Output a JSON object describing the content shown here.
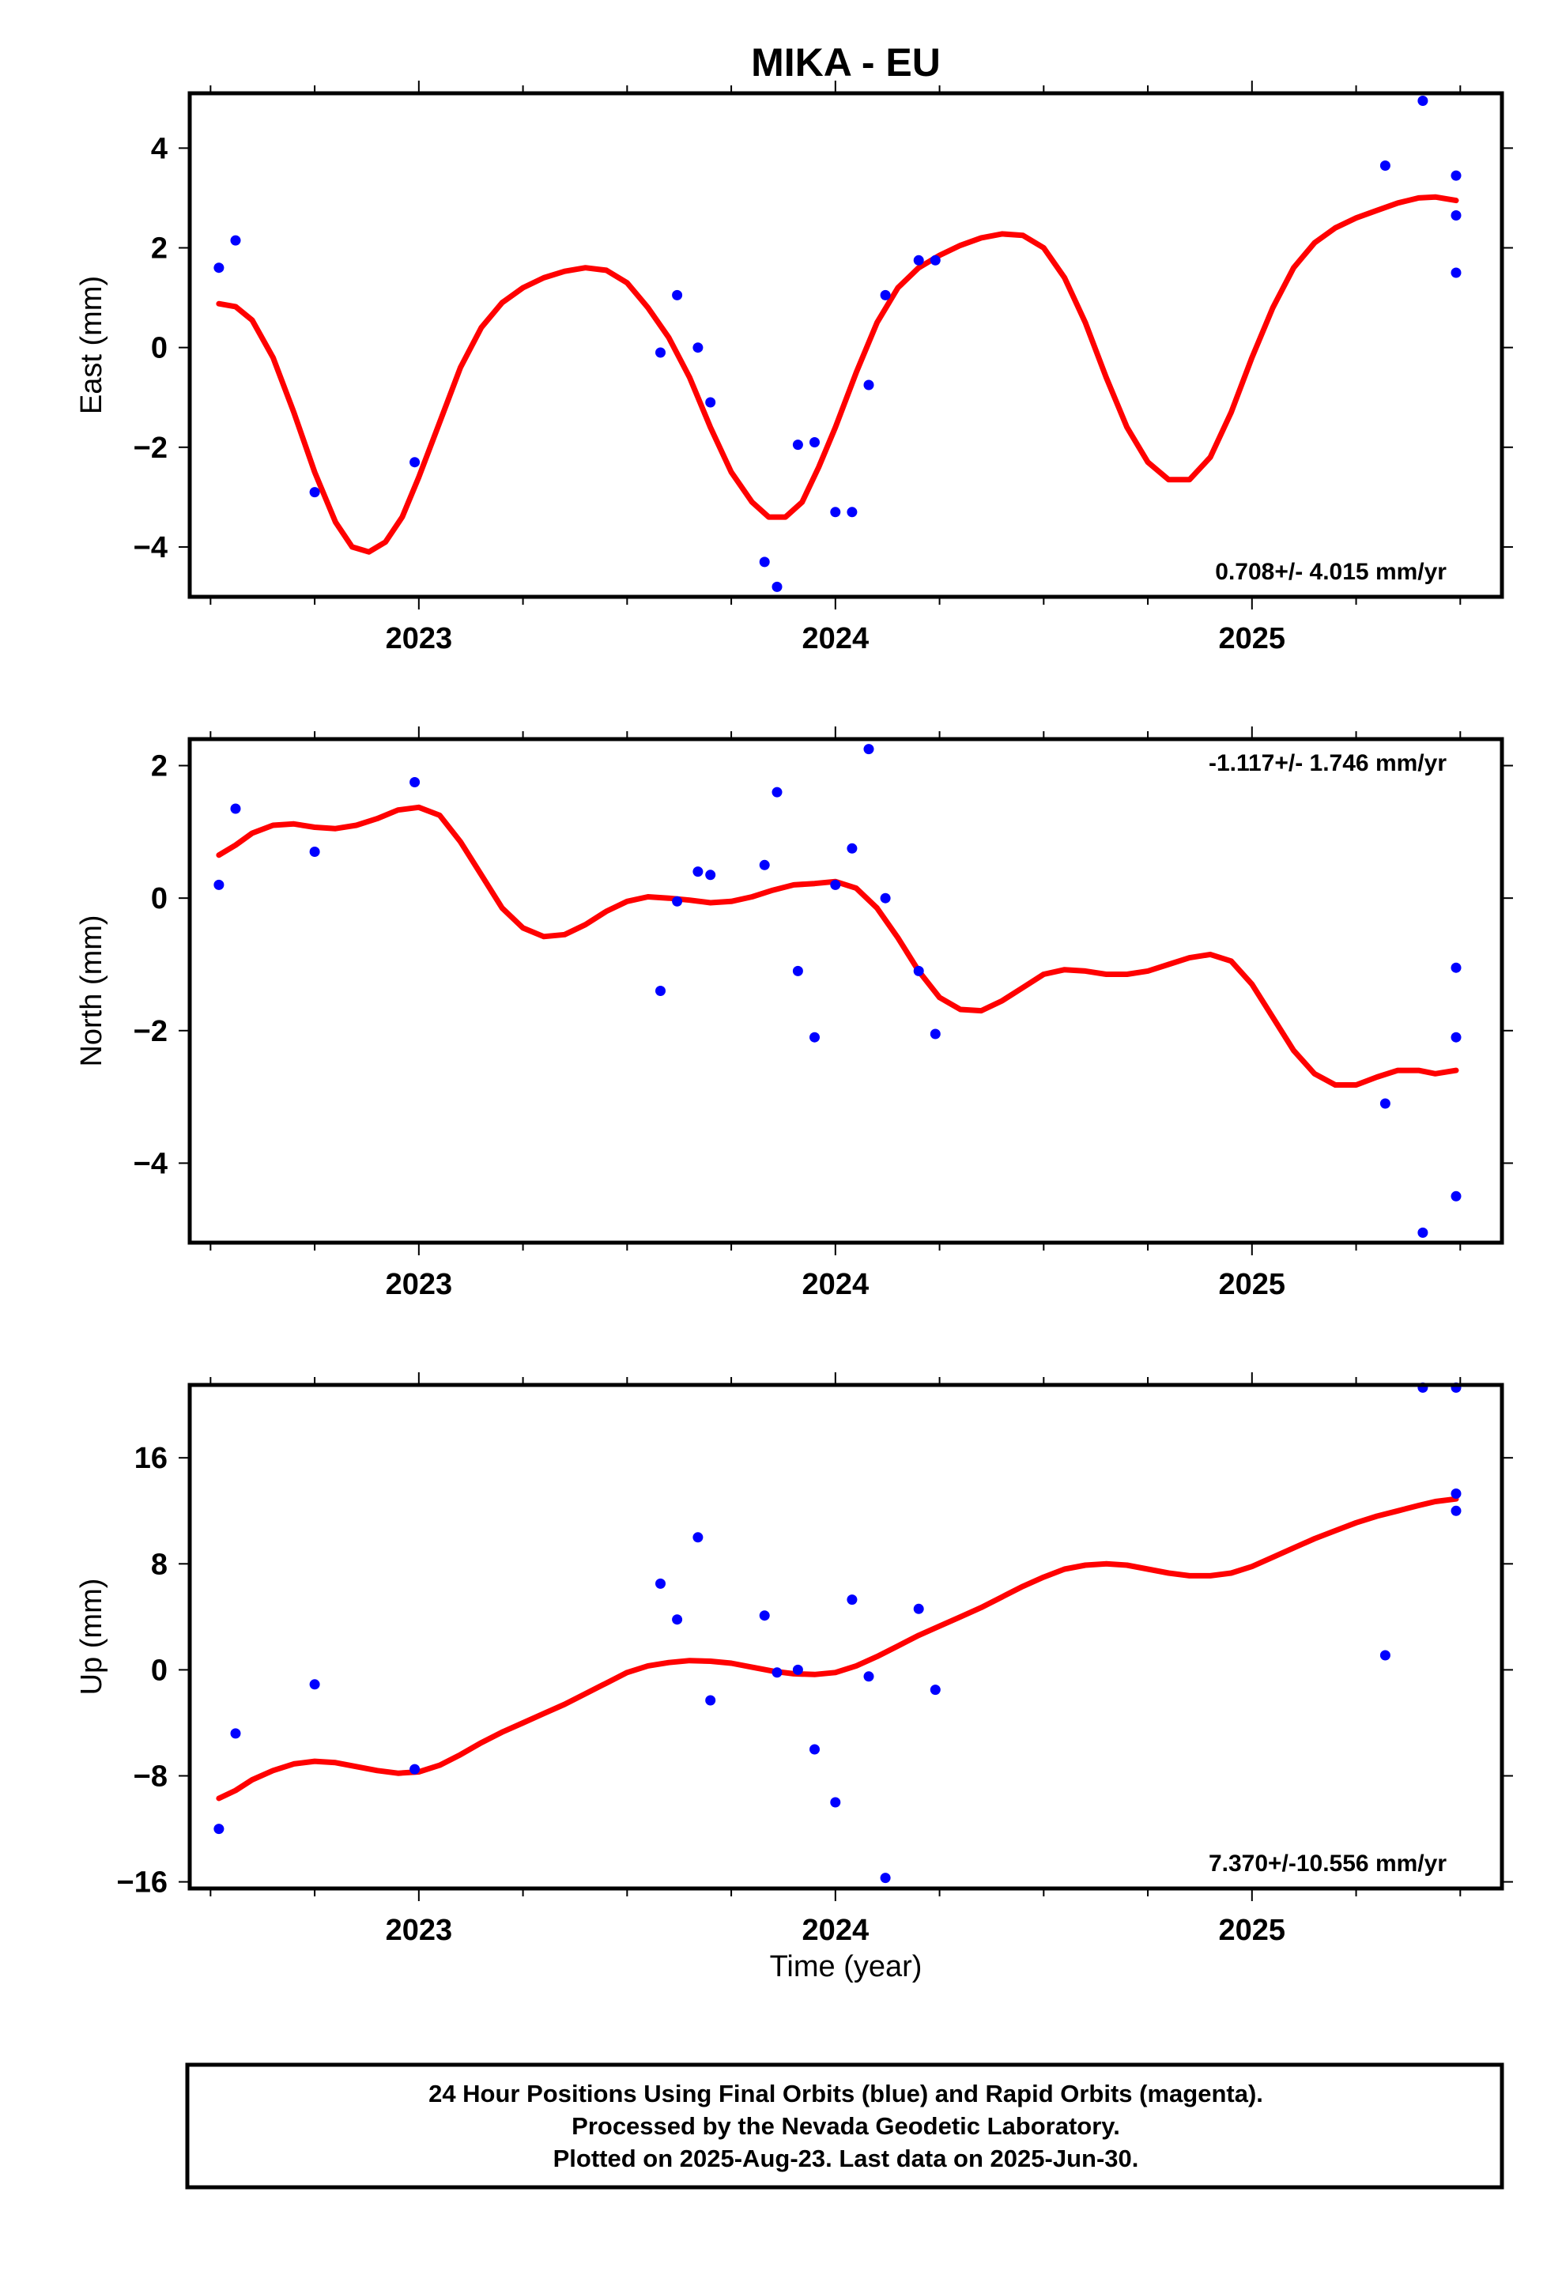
{
  "chart_data": {
    "type": "scatter",
    "title": "MIKA - EU",
    "xlabel": "Time (year)",
    "x_ticks": [
      "2023",
      "2024",
      "2025"
    ],
    "xlim": [
      2022.45,
      2025.6
    ],
    "legend": "none",
    "colors": {
      "points": "#0000ff",
      "fit": "#ff0000",
      "axes": "#000000"
    },
    "panels": [
      {
        "ylabel": "East (mm)",
        "ylim": [
          -5.0,
          5.1
        ],
        "y_ticks": [
          4,
          2,
          0,
          -2,
          -4
        ],
        "y_tick_labels": [
          "4",
          "2",
          "0",
          "−2",
          "−4"
        ],
        "rate": "0.708+/- 4.015 mm/yr",
        "points": [
          [
            2022.52,
            1.6
          ],
          [
            2022.56,
            2.15
          ],
          [
            2022.75,
            -2.9
          ],
          [
            2022.99,
            -2.3
          ],
          [
            2023.58,
            -0.1
          ],
          [
            2023.62,
            1.05
          ],
          [
            2023.67,
            0.0
          ],
          [
            2023.7,
            -1.1
          ],
          [
            2023.83,
            -4.3
          ],
          [
            2023.86,
            -4.8
          ],
          [
            2023.91,
            -1.95
          ],
          [
            2023.95,
            -1.9
          ],
          [
            2024.0,
            -3.3
          ],
          [
            2024.04,
            -3.3
          ],
          [
            2024.08,
            -0.75
          ],
          [
            2024.12,
            1.05
          ],
          [
            2024.2,
            1.75
          ],
          [
            2024.24,
            1.75
          ],
          [
            2025.32,
            3.65
          ],
          [
            2025.41,
            4.95
          ],
          [
            2025.49,
            1.5
          ],
          [
            2025.49,
            2.65
          ],
          [
            2025.49,
            3.45
          ]
        ],
        "fit": [
          [
            2022.52,
            0.88
          ],
          [
            2022.56,
            0.82
          ],
          [
            2022.6,
            0.55
          ],
          [
            2022.65,
            -0.2
          ],
          [
            2022.7,
            -1.3
          ],
          [
            2022.75,
            -2.5
          ],
          [
            2022.8,
            -3.5
          ],
          [
            2022.84,
            -4.0
          ],
          [
            2022.88,
            -4.1
          ],
          [
            2022.92,
            -3.9
          ],
          [
            2022.96,
            -3.4
          ],
          [
            2023.0,
            -2.6
          ],
          [
            2023.05,
            -1.5
          ],
          [
            2023.1,
            -0.4
          ],
          [
            2023.15,
            0.4
          ],
          [
            2023.2,
            0.9
          ],
          [
            2023.25,
            1.2
          ],
          [
            2023.3,
            1.4
          ],
          [
            2023.35,
            1.53
          ],
          [
            2023.4,
            1.6
          ],
          [
            2023.45,
            1.55
          ],
          [
            2023.5,
            1.3
          ],
          [
            2023.55,
            0.8
          ],
          [
            2023.6,
            0.2
          ],
          [
            2023.65,
            -0.6
          ],
          [
            2023.7,
            -1.6
          ],
          [
            2023.75,
            -2.5
          ],
          [
            2023.8,
            -3.1
          ],
          [
            2023.84,
            -3.4
          ],
          [
            2023.88,
            -3.4
          ],
          [
            2023.92,
            -3.1
          ],
          [
            2023.96,
            -2.4
          ],
          [
            2024.0,
            -1.6
          ],
          [
            2024.05,
            -0.5
          ],
          [
            2024.1,
            0.5
          ],
          [
            2024.15,
            1.2
          ],
          [
            2024.2,
            1.6
          ],
          [
            2024.25,
            1.85
          ],
          [
            2024.3,
            2.05
          ],
          [
            2024.35,
            2.2
          ],
          [
            2024.4,
            2.28
          ],
          [
            2024.45,
            2.25
          ],
          [
            2024.5,
            2.0
          ],
          [
            2024.55,
            1.4
          ],
          [
            2024.6,
            0.5
          ],
          [
            2024.65,
            -0.6
          ],
          [
            2024.7,
            -1.6
          ],
          [
            2024.75,
            -2.3
          ],
          [
            2024.8,
            -2.65
          ],
          [
            2024.85,
            -2.65
          ],
          [
            2024.9,
            -2.2
          ],
          [
            2024.95,
            -1.3
          ],
          [
            2025.0,
            -0.2
          ],
          [
            2025.05,
            0.8
          ],
          [
            2025.1,
            1.6
          ],
          [
            2025.15,
            2.1
          ],
          [
            2025.2,
            2.4
          ],
          [
            2025.25,
            2.6
          ],
          [
            2025.3,
            2.75
          ],
          [
            2025.35,
            2.9
          ],
          [
            2025.4,
            3.0
          ],
          [
            2025.44,
            3.02
          ],
          [
            2025.49,
            2.95
          ]
        ]
      },
      {
        "ylabel": "North (mm)",
        "ylim": [
          -5.2,
          2.4
        ],
        "y_ticks": [
          2,
          0,
          -2,
          -4
        ],
        "y_tick_labels": [
          "2",
          "0",
          "−2",
          "−4"
        ],
        "rate": "-1.117+/- 1.746 mm/yr",
        "points": [
          [
            2022.52,
            0.2
          ],
          [
            2022.56,
            1.35
          ],
          [
            2022.75,
            0.7
          ],
          [
            2022.99,
            1.75
          ],
          [
            2023.58,
            -1.4
          ],
          [
            2023.62,
            -0.05
          ],
          [
            2023.67,
            0.4
          ],
          [
            2023.7,
            0.35
          ],
          [
            2023.83,
            0.5
          ],
          [
            2023.86,
            1.6
          ],
          [
            2023.91,
            -1.1
          ],
          [
            2023.95,
            -2.1
          ],
          [
            2024.0,
            0.2
          ],
          [
            2024.04,
            0.75
          ],
          [
            2024.08,
            2.25
          ],
          [
            2024.12,
            0.0
          ],
          [
            2024.2,
            -1.1
          ],
          [
            2024.24,
            -2.05
          ],
          [
            2025.32,
            -3.1
          ],
          [
            2025.41,
            -5.05
          ],
          [
            2025.49,
            -1.05
          ],
          [
            2025.49,
            -2.1
          ],
          [
            2025.49,
            -4.5
          ]
        ],
        "fit": [
          [
            2022.52,
            0.65
          ],
          [
            2022.56,
            0.8
          ],
          [
            2022.6,
            0.98
          ],
          [
            2022.65,
            1.1
          ],
          [
            2022.7,
            1.12
          ],
          [
            2022.75,
            1.07
          ],
          [
            2022.8,
            1.05
          ],
          [
            2022.85,
            1.1
          ],
          [
            2022.9,
            1.2
          ],
          [
            2022.95,
            1.33
          ],
          [
            2023.0,
            1.37
          ],
          [
            2023.05,
            1.25
          ],
          [
            2023.1,
            0.85
          ],
          [
            2023.15,
            0.35
          ],
          [
            2023.2,
            -0.15
          ],
          [
            2023.25,
            -0.45
          ],
          [
            2023.3,
            -0.58
          ],
          [
            2023.35,
            -0.55
          ],
          [
            2023.4,
            -0.4
          ],
          [
            2023.45,
            -0.2
          ],
          [
            2023.5,
            -0.05
          ],
          [
            2023.55,
            0.02
          ],
          [
            2023.6,
            0.0
          ],
          [
            2023.65,
            -0.03
          ],
          [
            2023.7,
            -0.07
          ],
          [
            2023.75,
            -0.05
          ],
          [
            2023.8,
            0.02
          ],
          [
            2023.85,
            0.12
          ],
          [
            2023.9,
            0.2
          ],
          [
            2023.95,
            0.22
          ],
          [
            2024.0,
            0.25
          ],
          [
            2024.05,
            0.15
          ],
          [
            2024.1,
            -0.15
          ],
          [
            2024.15,
            -0.6
          ],
          [
            2024.2,
            -1.1
          ],
          [
            2024.25,
            -1.5
          ],
          [
            2024.3,
            -1.68
          ],
          [
            2024.35,
            -1.7
          ],
          [
            2024.4,
            -1.55
          ],
          [
            2024.45,
            -1.35
          ],
          [
            2024.5,
            -1.15
          ],
          [
            2024.55,
            -1.08
          ],
          [
            2024.6,
            -1.1
          ],
          [
            2024.65,
            -1.15
          ],
          [
            2024.7,
            -1.15
          ],
          [
            2024.75,
            -1.1
          ],
          [
            2024.8,
            -1.0
          ],
          [
            2024.85,
            -0.9
          ],
          [
            2024.9,
            -0.85
          ],
          [
            2024.95,
            -0.95
          ],
          [
            2025.0,
            -1.3
          ],
          [
            2025.05,
            -1.8
          ],
          [
            2025.1,
            -2.3
          ],
          [
            2025.15,
            -2.65
          ],
          [
            2025.2,
            -2.82
          ],
          [
            2025.25,
            -2.82
          ],
          [
            2025.3,
            -2.7
          ],
          [
            2025.35,
            -2.6
          ],
          [
            2025.4,
            -2.6
          ],
          [
            2025.44,
            -2.65
          ],
          [
            2025.49,
            -2.6
          ]
        ]
      },
      {
        "ylabel": "Up (mm)",
        "ylim": [
          -16.5,
          21.5
        ],
        "y_ticks": [
          16,
          8,
          0,
          -8,
          -16
        ],
        "y_tick_labels": [
          "16",
          "8",
          "0",
          "−8",
          "−16"
        ],
        "rate": "7.370+/-10.556 mm/yr",
        "points": [
          [
            2022.52,
            -12.0
          ],
          [
            2022.56,
            -4.8
          ],
          [
            2022.75,
            -1.1
          ],
          [
            2022.99,
            -7.5
          ],
          [
            2023.58,
            6.5
          ],
          [
            2023.62,
            3.8
          ],
          [
            2023.67,
            10.0
          ],
          [
            2023.7,
            -2.3
          ],
          [
            2023.83,
            4.1
          ],
          [
            2023.86,
            -0.2
          ],
          [
            2023.91,
            0.0
          ],
          [
            2023.95,
            -6.0
          ],
          [
            2024.0,
            -10.0
          ],
          [
            2024.04,
            5.3
          ],
          [
            2024.08,
            -0.5
          ],
          [
            2024.12,
            -15.7
          ],
          [
            2024.2,
            4.6
          ],
          [
            2024.24,
            -1.5
          ],
          [
            2025.32,
            1.1
          ],
          [
            2025.41,
            21.3
          ],
          [
            2025.49,
            21.3
          ],
          [
            2025.49,
            13.3
          ],
          [
            2025.49,
            12.0
          ]
        ],
        "fit": [
          [
            2022.52,
            -9.7
          ],
          [
            2022.56,
            -9.1
          ],
          [
            2022.6,
            -8.3
          ],
          [
            2022.65,
            -7.6
          ],
          [
            2022.7,
            -7.1
          ],
          [
            2022.75,
            -6.9
          ],
          [
            2022.8,
            -7.0
          ],
          [
            2022.85,
            -7.3
          ],
          [
            2022.9,
            -7.6
          ],
          [
            2022.95,
            -7.8
          ],
          [
            2023.0,
            -7.7
          ],
          [
            2023.05,
            -7.2
          ],
          [
            2023.1,
            -6.4
          ],
          [
            2023.15,
            -5.5
          ],
          [
            2023.2,
            -4.7
          ],
          [
            2023.25,
            -4.0
          ],
          [
            2023.3,
            -3.3
          ],
          [
            2023.35,
            -2.6
          ],
          [
            2023.4,
            -1.8
          ],
          [
            2023.45,
            -1.0
          ],
          [
            2023.5,
            -0.2
          ],
          [
            2023.55,
            0.3
          ],
          [
            2023.6,
            0.55
          ],
          [
            2023.65,
            0.7
          ],
          [
            2023.7,
            0.65
          ],
          [
            2023.75,
            0.5
          ],
          [
            2023.8,
            0.2
          ],
          [
            2023.85,
            -0.1
          ],
          [
            2023.9,
            -0.3
          ],
          [
            2023.95,
            -0.35
          ],
          [
            2024.0,
            -0.2
          ],
          [
            2024.05,
            0.3
          ],
          [
            2024.1,
            1.0
          ],
          [
            2024.15,
            1.8
          ],
          [
            2024.2,
            2.6
          ],
          [
            2024.25,
            3.3
          ],
          [
            2024.3,
            4.0
          ],
          [
            2024.35,
            4.7
          ],
          [
            2024.4,
            5.5
          ],
          [
            2024.45,
            6.3
          ],
          [
            2024.5,
            7.0
          ],
          [
            2024.55,
            7.6
          ],
          [
            2024.6,
            7.9
          ],
          [
            2024.65,
            8.0
          ],
          [
            2024.7,
            7.9
          ],
          [
            2024.75,
            7.6
          ],
          [
            2024.8,
            7.3
          ],
          [
            2024.85,
            7.1
          ],
          [
            2024.9,
            7.1
          ],
          [
            2024.95,
            7.3
          ],
          [
            2025.0,
            7.8
          ],
          [
            2025.05,
            8.5
          ],
          [
            2025.1,
            9.2
          ],
          [
            2025.15,
            9.9
          ],
          [
            2025.2,
            10.5
          ],
          [
            2025.25,
            11.1
          ],
          [
            2025.3,
            11.6
          ],
          [
            2025.35,
            12.0
          ],
          [
            2025.4,
            12.4
          ],
          [
            2025.44,
            12.7
          ],
          [
            2025.49,
            12.9
          ]
        ]
      }
    ],
    "footer": [
      "24 Hour Positions Using Final Orbits (blue) and Rapid Orbits (magenta).",
      "Processed by the Nevada Geodetic Laboratory.",
      "Plotted on 2025-Aug-23. Last data on 2025-Jun-30."
    ]
  }
}
